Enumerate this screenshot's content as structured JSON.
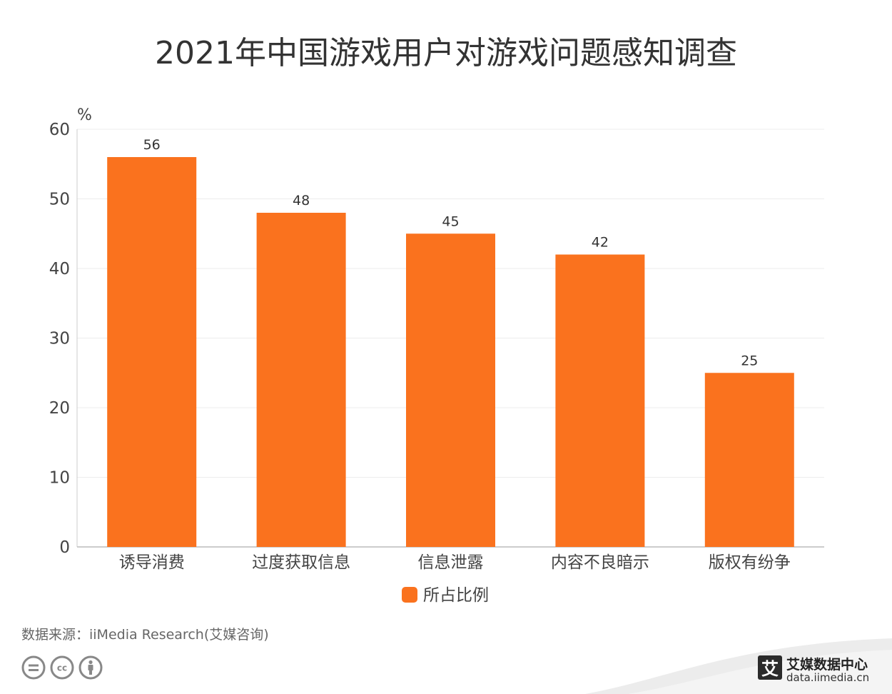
{
  "chart_data": {
    "type": "bar",
    "title": "2021年中国游戏用户对游戏问题感知调查",
    "ylabel": "%",
    "ylim": [
      0,
      60
    ],
    "yticks": [
      "0",
      "10",
      "20",
      "30",
      "40",
      "50",
      "60"
    ],
    "grid": true,
    "legend_position": "bottom",
    "categories": [
      "诱导消费",
      "过度获取信息",
      "信息泄露",
      "内容不良暗示",
      "版权有纷争"
    ],
    "series": [
      {
        "name": "所占比例",
        "color": "#fa721e",
        "values": [
          56,
          48,
          45,
          42,
          25
        ]
      }
    ]
  },
  "source_text": "数据来源：iiMedia Research(艾媒咨询)",
  "brand": {
    "name": "艾媒数据中心",
    "url": "data.iimedia.cn",
    "logo_char": "艾"
  },
  "icons": [
    "cc-equal-icon",
    "cc-cc-icon",
    "cc-by-icon"
  ]
}
